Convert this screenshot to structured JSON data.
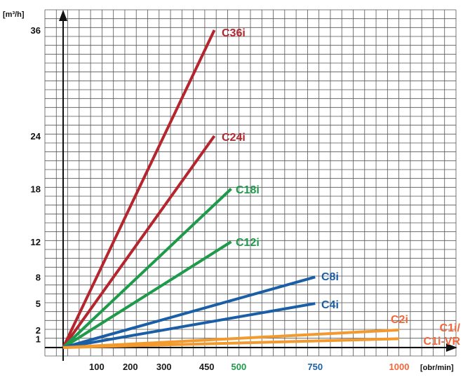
{
  "chart_data": {
    "type": "line",
    "title": "",
    "ylabel": "[m³/h]",
    "xlabel": "[obr/min]",
    "xlim": [
      0,
      1000
    ],
    "ylim": [
      0,
      36
    ],
    "grid": true,
    "y_ticks": [
      1,
      2,
      5,
      8,
      12,
      18,
      24,
      36
    ],
    "x_ticks": [
      {
        "value": 100,
        "label": "100",
        "color": "#1a1a1a"
      },
      {
        "value": 200,
        "label": "200",
        "color": "#1a1a1a"
      },
      {
        "value": 300,
        "label": "300",
        "color": "#1a1a1a"
      },
      {
        "value": 450,
        "label": "450",
        "color": "#1a1a1a"
      },
      {
        "value": 500,
        "label": "500",
        "color": "#1e9a4a"
      },
      {
        "value": 750,
        "label": "750",
        "color": "#1a5fa6"
      },
      {
        "value": 1000,
        "label": "1000",
        "color": "#f0683a"
      }
    ],
    "series": [
      {
        "name": "C36i",
        "color": "#b5252e",
        "points": [
          [
            0,
            0
          ],
          [
            450,
            36
          ]
        ]
      },
      {
        "name": "C24i",
        "color": "#b5252e",
        "points": [
          [
            0,
            0
          ],
          [
            450,
            24
          ]
        ]
      },
      {
        "name": "C18i",
        "color": "#1e9a4a",
        "points": [
          [
            0,
            0
          ],
          [
            500,
            18
          ]
        ]
      },
      {
        "name": "C12i",
        "color": "#1e9a4a",
        "points": [
          [
            0,
            0
          ],
          [
            500,
            12
          ]
        ]
      },
      {
        "name": "C8i",
        "color": "#1a5fa6",
        "points": [
          [
            0,
            0
          ],
          [
            750,
            8
          ]
        ]
      },
      {
        "name": "C4i",
        "color": "#1a5fa6",
        "points": [
          [
            0,
            0
          ],
          [
            750,
            5
          ]
        ]
      },
      {
        "name": "C2i",
        "color": "#f29a2e",
        "points": [
          [
            0,
            0
          ],
          [
            1000,
            2
          ]
        ]
      },
      {
        "name": "C1i/ C1i-VR",
        "color": "#f29a2e",
        "points": [
          [
            0,
            0
          ],
          [
            1000,
            1
          ]
        ]
      }
    ],
    "series_label_colors": {
      "C36i": "#b5252e",
      "C24i": "#b5252e",
      "C18i": "#1e9a4a",
      "C12i": "#1e9a4a",
      "C8i": "#1a5fa6",
      "C4i": "#1a5fa6",
      "C2i": "#f0683a",
      "C1i/ C1i-VR": "#f0683a"
    }
  }
}
